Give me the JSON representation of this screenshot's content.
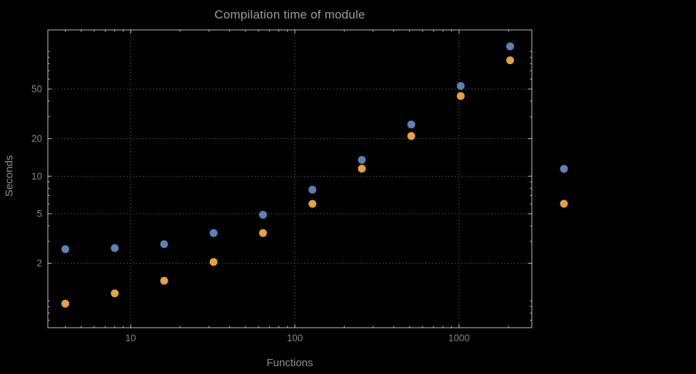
{
  "chart": {
    "title": "Compilation time of module",
    "x_axis_label": "Functions",
    "y_axis_label": "Seconds"
  },
  "colors": {
    "background": "#000000",
    "series_blue": "#5e81b5",
    "series_orange": "#e6a23c",
    "grid": "#6e6e6e",
    "frame": "#c4c4c4",
    "title_text": "#9d9d9d",
    "axis_label_text": "#8f8f8f",
    "tick_text": "#858585"
  },
  "chart_data": {
    "type": "scatter",
    "title": "Compilation time of module",
    "xlabel": "Functions",
    "ylabel": "Seconds",
    "x_scale": "log",
    "y_scale": "log",
    "xlim": [
      3.1,
      2800
    ],
    "ylim": [
      0.6,
      140
    ],
    "x_ticks": [
      10,
      100,
      1000
    ],
    "y_ticks": [
      2,
      5,
      10,
      20,
      50
    ],
    "grid": "dotted",
    "x": [
      4,
      8,
      16,
      32,
      64,
      128,
      256,
      512,
      1024,
      2048
    ],
    "series": [
      {
        "name": "series-1-blue",
        "color_key": "series_blue",
        "values": [
          2.6,
          2.65,
          2.85,
          3.5,
          4.9,
          7.8,
          13.5,
          26,
          53,
          110
        ]
      },
      {
        "name": "series-2-orange",
        "color_key": "series_orange",
        "values": [
          0.95,
          1.15,
          1.45,
          2.05,
          3.5,
          6.0,
          11.5,
          21,
          44,
          85
        ]
      }
    ],
    "legend": {
      "position": "outside-right-markers-only",
      "entries": [
        {
          "name": "legend-marker-series-1",
          "color_key": "series_blue",
          "label": ""
        },
        {
          "name": "legend-marker-series-2",
          "color_key": "series_orange",
          "label": ""
        }
      ]
    }
  }
}
